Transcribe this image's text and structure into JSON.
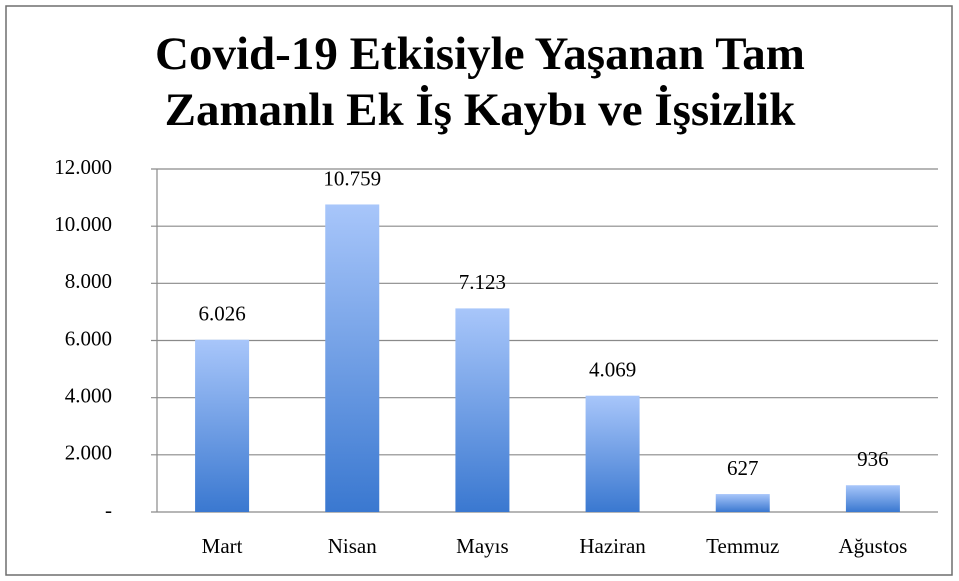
{
  "chart_data": {
    "type": "bar",
    "title": "Covid-19 Etkisiyle Yaşanan Tam Zamanlı Ek İş Kaybı ve İşsizlik",
    "categories": [
      "Mart",
      "Nisan",
      "Mayıs",
      "Haziran",
      "Temmuz",
      "Ağustos"
    ],
    "values": [
      6026,
      10759,
      7123,
      4069,
      627,
      936
    ],
    "value_labels": [
      "6.026",
      "10.759",
      "7.123",
      "4.069",
      "627",
      "936"
    ],
    "color": "#3a78d0",
    "ylim": [
      0,
      12000
    ],
    "yticks": [
      {
        "value": 0,
        "label": "-"
      },
      {
        "value": 2000,
        "label": "2.000"
      },
      {
        "value": 4000,
        "label": "4.000"
      },
      {
        "value": 6000,
        "label": "6.000"
      },
      {
        "value": 8000,
        "label": "8.000"
      },
      {
        "value": 10000,
        "label": "10.000"
      },
      {
        "value": 12000,
        "label": "12.000"
      }
    ],
    "grid": true
  }
}
